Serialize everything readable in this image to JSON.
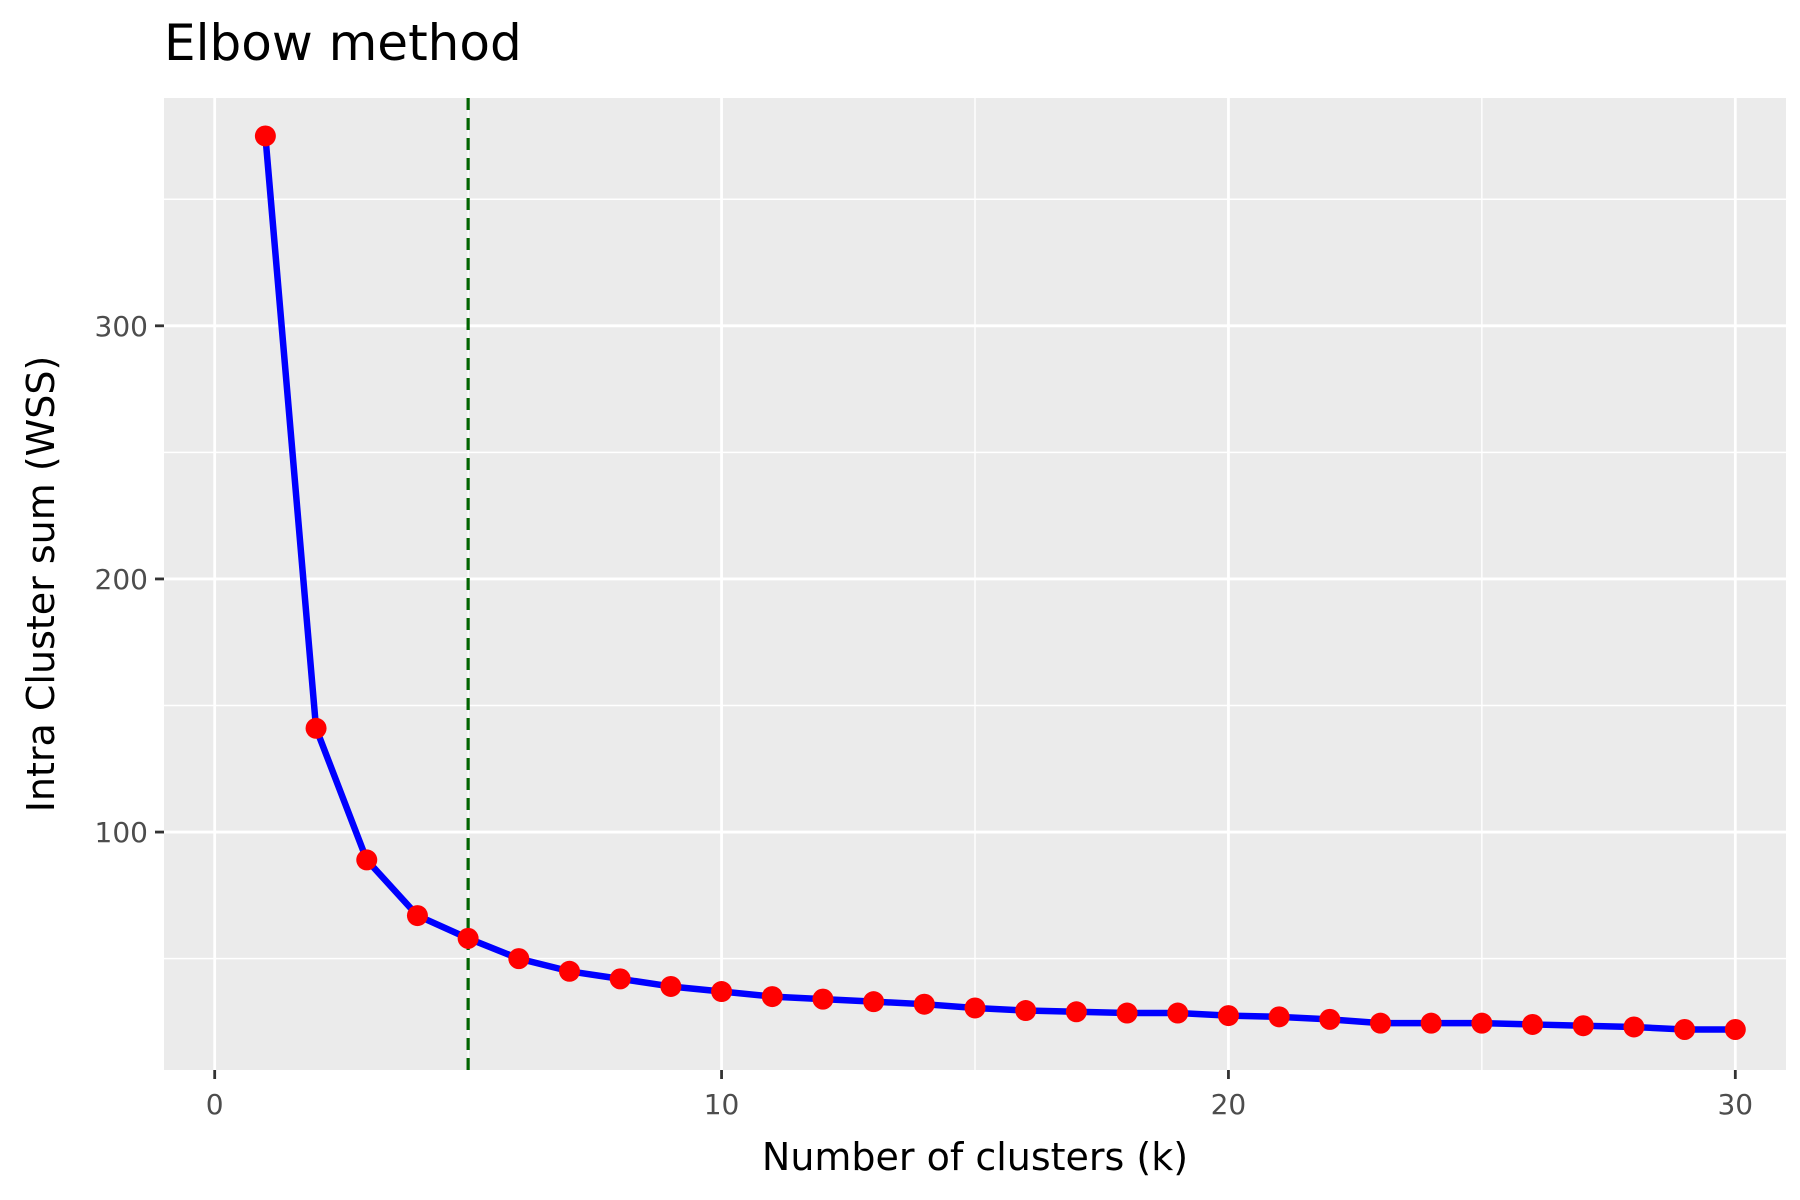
{
  "chart_data": {
    "type": "line",
    "title": "Elbow method",
    "xlabel": "Number of clusters (k)",
    "ylabel": "Intra Cluster sum (WSS)",
    "xlim": [
      -1,
      31
    ],
    "ylim": [
      6,
      390
    ],
    "x_ticks": [
      0,
      10,
      20,
      30
    ],
    "y_ticks": [
      100,
      200,
      300
    ],
    "grid": true,
    "legend": "none",
    "reference_line": {
      "type": "vertical",
      "x": 5,
      "style": "dashed",
      "color": "#006400"
    },
    "series": [
      {
        "x": [
          1,
          2,
          3,
          4,
          5,
          6,
          7,
          8,
          9,
          10,
          11,
          12,
          13,
          14,
          15,
          16,
          17,
          18,
          19,
          20,
          21,
          22,
          23,
          24,
          25,
          26,
          27,
          28,
          29,
          30
        ],
        "values": [
          375,
          141,
          89,
          67,
          58,
          50,
          45,
          42,
          39,
          37,
          35,
          34,
          33,
          32,
          30.5,
          29.5,
          29,
          28.5,
          28.5,
          27.5,
          27,
          26,
          24.5,
          24.5,
          24.5,
          24,
          23.5,
          23,
          22,
          22
        ],
        "line_color": "#0000ff",
        "marker_color": "#ff0000"
      }
    ]
  }
}
